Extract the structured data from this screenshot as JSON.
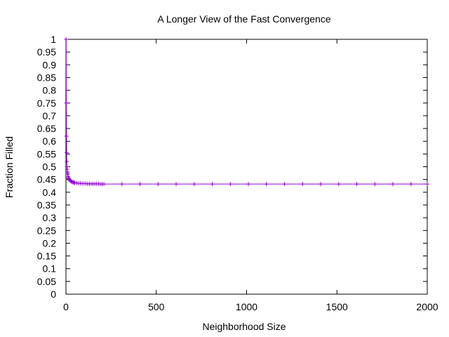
{
  "chart_data": {
    "type": "line",
    "title": "A Longer View of the Fast Convergence",
    "xlabel": "Neighborhood Size",
    "ylabel": "Fraction Filled",
    "xlim": [
      0,
      2000
    ],
    "ylim": [
      0,
      1
    ],
    "xticks": [
      0,
      500,
      1000,
      1500,
      2000
    ],
    "yticks": [
      0,
      0.05,
      0.1,
      0.15,
      0.2,
      0.25,
      0.3,
      0.35,
      0.4,
      0.45,
      0.5,
      0.55,
      0.6,
      0.65,
      0.7,
      0.75,
      0.8,
      0.85,
      0.9,
      0.95,
      1
    ],
    "grid": false,
    "legend": "none",
    "series": [
      {
        "color": "#9400d3",
        "marker": "plus",
        "x": [
          1,
          2,
          3,
          4,
          5,
          6,
          7,
          8,
          9,
          10,
          12,
          14,
          16,
          18,
          20,
          25,
          30,
          35,
          40,
          45,
          50,
          60,
          70,
          80,
          90,
          100,
          110,
          120,
          130,
          140,
          150,
          160,
          170,
          180,
          190,
          200,
          210,
          310,
          410,
          510,
          610,
          710,
          810,
          910,
          1010,
          1110,
          1210,
          1310,
          1410,
          1510,
          1610,
          1710,
          1810,
          1910,
          2000
        ],
        "y": [
          1.0,
          0.75,
          0.62,
          0.555,
          0.52,
          0.5,
          0.49,
          0.48,
          0.475,
          0.47,
          0.462,
          0.457,
          0.453,
          0.45,
          0.448,
          0.445,
          0.442,
          0.44,
          0.439,
          0.438,
          0.437,
          0.436,
          0.435,
          0.435,
          0.434,
          0.434,
          0.434,
          0.433,
          0.433,
          0.433,
          0.433,
          0.433,
          0.433,
          0.433,
          0.432,
          0.432,
          0.432,
          0.432,
          0.432,
          0.432,
          0.432,
          0.432,
          0.432,
          0.432,
          0.432,
          0.432,
          0.432,
          0.432,
          0.432,
          0.432,
          0.432,
          0.432,
          0.432,
          0.432,
          0.432
        ]
      }
    ]
  }
}
